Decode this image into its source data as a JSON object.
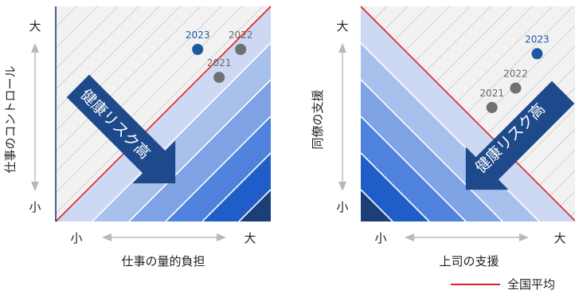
{
  "chart_data": [
    {
      "type": "scatter",
      "xlabel": "仕事の量的負担",
      "ylabel": "仕事のコントロール",
      "x_low": "小",
      "x_high": "大",
      "y_low": "小",
      "y_high": "大",
      "arrow_label": "健康リスク高",
      "points": [
        {
          "label": "2023",
          "x": 0.66,
          "y": 0.8,
          "color": "#1a5aa0"
        },
        {
          "label": "2022",
          "x": 0.86,
          "y": 0.8,
          "color": "#707070"
        },
        {
          "label": "2021",
          "x": 0.76,
          "y": 0.67,
          "color": "#707070"
        }
      ]
    },
    {
      "type": "scatter",
      "xlabel": "上司の支援",
      "ylabel": "同僚の支援",
      "x_low": "小",
      "x_high": "大",
      "y_low": "小",
      "y_high": "大",
      "arrow_label": "健康リスク高",
      "points": [
        {
          "label": "2023",
          "x": 0.82,
          "y": 0.78,
          "color": "#1a5aa0"
        },
        {
          "label": "2022",
          "x": 0.72,
          "y": 0.62,
          "color": "#707070"
        },
        {
          "label": "2021",
          "x": 0.61,
          "y": 0.53,
          "color": "#707070"
        }
      ]
    }
  ],
  "legend": {
    "label": "全国平均",
    "color": "#e02020"
  },
  "colors": {
    "axis": "#1a3a73",
    "band_1": "#cdd9f2",
    "band_2": "#a8c0ec",
    "band_3": "#7fa2e4",
    "band_4": "#4f82dc",
    "band_5": "#1f5ec8",
    "band_6": "#1c3f7a",
    "arrow": "#1e4a8c",
    "stripe_bg": "#f2f2f2",
    "stripe_line": "#d6d6d6",
    "avg_line": "#e02020",
    "gray_arrow": "#b8b8b8",
    "label_2023": "#1a5aa0",
    "label_gray": "#6a6a6a"
  }
}
